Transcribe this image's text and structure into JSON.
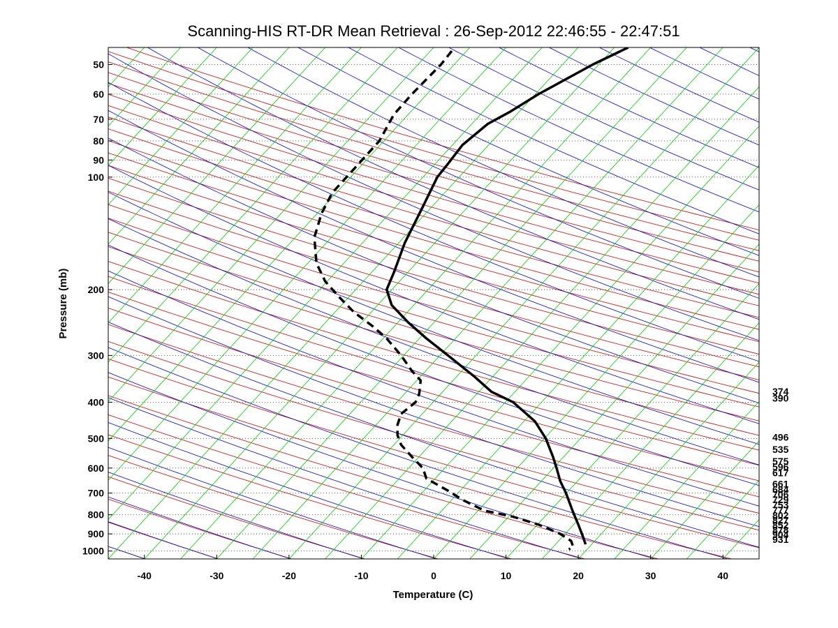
{
  "chart_data": {
    "type": "line",
    "title": "Scanning-HIS RT-DR Mean Retrieval : 26-Sep-2012 22:46:55 - 22:47:51",
    "xlabel": "Temperature (C)",
    "ylabel": "Pressure (mb)",
    "xlim": [
      -45,
      45
    ],
    "ylim": [
      1050,
      45
    ],
    "yscale": "log",
    "grid": "y-dotted",
    "x_ticks": [
      "-40",
      "-30",
      "-20",
      "-10",
      "0",
      "10",
      "20",
      "30",
      "40"
    ],
    "y_ticks": [
      "50",
      "60",
      "70",
      "80",
      "90",
      "100",
      "200",
      "300",
      "400",
      "500",
      "600",
      "700",
      "800",
      "900",
      "1000"
    ],
    "right_labels": [
      {
        "p": 374,
        "text": "374"
      },
      {
        "p": 390,
        "text": "390"
      },
      {
        "p": 496,
        "text": "496"
      },
      {
        "p": 535,
        "text": "535"
      },
      {
        "p": 575,
        "text": "575"
      },
      {
        "p": 596,
        "text": "596"
      },
      {
        "p": 617,
        "text": "617"
      },
      {
        "p": 661,
        "text": "661"
      },
      {
        "p": 684,
        "text": "684"
      },
      {
        "p": 706,
        "text": "706"
      },
      {
        "p": 729,
        "text": "729"
      },
      {
        "p": 753,
        "text": "753"
      },
      {
        "p": 777,
        "text": "777"
      },
      {
        "p": 802,
        "text": "802"
      },
      {
        "p": 827,
        "text": "827"
      },
      {
        "p": 852,
        "text": "852"
      },
      {
        "p": 878,
        "text": "878"
      },
      {
        "p": 904,
        "text": "904"
      },
      {
        "p": 931,
        "text": "931"
      }
    ],
    "series": [
      {
        "style": "solid",
        "color": "#000000",
        "points": [
          [
            26.9,
            45
          ],
          [
            22,
            50
          ],
          [
            14.5,
            60
          ],
          [
            10.5,
            67
          ],
          [
            7.5,
            72
          ],
          [
            4,
            82
          ],
          [
            2,
            92
          ],
          [
            0.5,
            100
          ],
          [
            -1.5,
            120
          ],
          [
            -4,
            150
          ],
          [
            -5.5,
            180
          ],
          [
            -6.5,
            200
          ],
          [
            -5.8,
            220
          ],
          [
            -3.5,
            245
          ],
          [
            -1,
            270
          ],
          [
            2,
            300
          ],
          [
            5.5,
            340
          ],
          [
            8,
            375
          ],
          [
            11,
            400
          ],
          [
            14,
            450
          ],
          [
            15.5,
            500
          ],
          [
            16.5,
            560
          ],
          [
            17,
            600
          ],
          [
            17.5,
            650
          ],
          [
            18.3,
            700
          ],
          [
            19.2,
            780
          ],
          [
            20,
            850
          ],
          [
            20.6,
            910
          ],
          [
            21,
            960
          ]
        ]
      },
      {
        "style": "dashed",
        "color": "#000000",
        "points": [
          [
            2.5,
            46
          ],
          [
            1,
            50
          ],
          [
            -3,
            60
          ],
          [
            -5.5,
            68
          ],
          [
            -7.5,
            80
          ],
          [
            -11,
            95
          ],
          [
            -14,
            110
          ],
          [
            -15.5,
            125
          ],
          [
            -16.5,
            145
          ],
          [
            -16.2,
            170
          ],
          [
            -15,
            190
          ],
          [
            -13,
            210
          ],
          [
            -11,
            230
          ],
          [
            -8.5,
            250
          ],
          [
            -6.5,
            270
          ],
          [
            -4.5,
            300
          ],
          [
            -3,
            330
          ],
          [
            -1.8,
            350
          ],
          [
            -2,
            380
          ],
          [
            -2.5,
            400
          ],
          [
            -4.5,
            430
          ],
          [
            -5,
            460
          ],
          [
            -5,
            490
          ],
          [
            -4.5,
            520
          ],
          [
            -3,
            560
          ],
          [
            -1.5,
            600
          ],
          [
            -1,
            640
          ],
          [
            2,
            690
          ],
          [
            4,
            730
          ],
          [
            7,
            780
          ],
          [
            11,
            810
          ],
          [
            14.5,
            850
          ],
          [
            17.5,
            900
          ],
          [
            19,
            940
          ],
          [
            19.3,
            975
          ],
          [
            18.7,
            990
          ]
        ]
      }
    ],
    "colors": {
      "dry_adiabat": "#cc0000",
      "moist_adiabat": "#0000cc",
      "mixing_ratio": "#00cc00",
      "gridline": "#444444"
    }
  }
}
